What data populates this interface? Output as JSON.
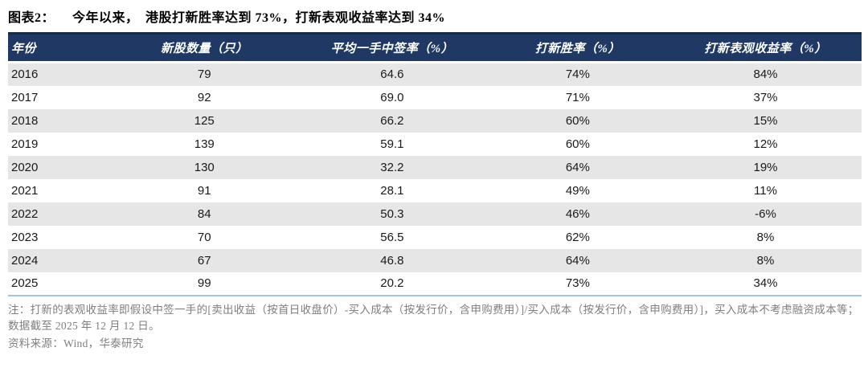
{
  "figure": {
    "label": "图表2：",
    "title": "今年以来，　港股打新胜率达到 73%，打新表观收益率达到 34%"
  },
  "table": {
    "headers": [
      "年份",
      "新股数量（只）",
      "平均一手中签率（%）",
      "打新胜率（%）",
      "打新表观收益率（%）"
    ],
    "rows": [
      [
        "2016",
        "79",
        "64.6",
        "74%",
        "84%"
      ],
      [
        "2017",
        "92",
        "69.0",
        "71%",
        "37%"
      ],
      [
        "2018",
        "125",
        "66.2",
        "60%",
        "15%"
      ],
      [
        "2019",
        "139",
        "59.1",
        "60%",
        "12%"
      ],
      [
        "2020",
        "130",
        "32.2",
        "64%",
        "19%"
      ],
      [
        "2021",
        "91",
        "28.1",
        "49%",
        "11%"
      ],
      [
        "2022",
        "84",
        "50.3",
        "46%",
        "-6%"
      ],
      [
        "2023",
        "70",
        "56.5",
        "62%",
        "8%"
      ],
      [
        "2024",
        "67",
        "46.8",
        "64%",
        "8%"
      ],
      [
        "2025",
        "99",
        "20.2",
        "73%",
        "34%"
      ]
    ]
  },
  "note": "注：打新的表观收益率即假设中签一手的[卖出收益（按首日收盘价）-买入成本（按发行价，含申购费用）]/买入成本（按发行价，含申购费用）]，买入成本不考虑融资成本等；数据截至 2025 年 12 月 12 日。",
  "source": "资料来源：Wind，华泰研究",
  "colors": {
    "header_bg": "#1f3864",
    "header_top_border": "#122a4d",
    "row_alt_bg": "#e7e6e6",
    "bottom_rule": "#9dc3e6",
    "note_text": "#7f7f7f",
    "body_text": "#1a1a1a"
  },
  "chart_data": {
    "type": "table",
    "title": "今年以来，港股打新胜率达到73%，打新表观收益率达到34%",
    "columns": [
      "年份",
      "新股数量（只）",
      "平均一手中签率（%）",
      "打新胜率（%）",
      "打新表观收益率（%）"
    ],
    "years": [
      2016,
      2017,
      2018,
      2019,
      2020,
      2021,
      2022,
      2023,
      2024,
      2025
    ],
    "new_stock_count": [
      79,
      92,
      125,
      139,
      130,
      91,
      84,
      70,
      67,
      99
    ],
    "avg_one_lot_allotment_rate_pct": [
      64.6,
      69.0,
      66.2,
      59.1,
      32.2,
      28.1,
      50.3,
      56.5,
      46.8,
      20.2
    ],
    "ipo_win_rate_pct": [
      74,
      71,
      60,
      60,
      64,
      49,
      46,
      62,
      64,
      73
    ],
    "ipo_apparent_return_pct": [
      84,
      37,
      15,
      12,
      19,
      11,
      -6,
      8,
      8,
      34
    ]
  }
}
